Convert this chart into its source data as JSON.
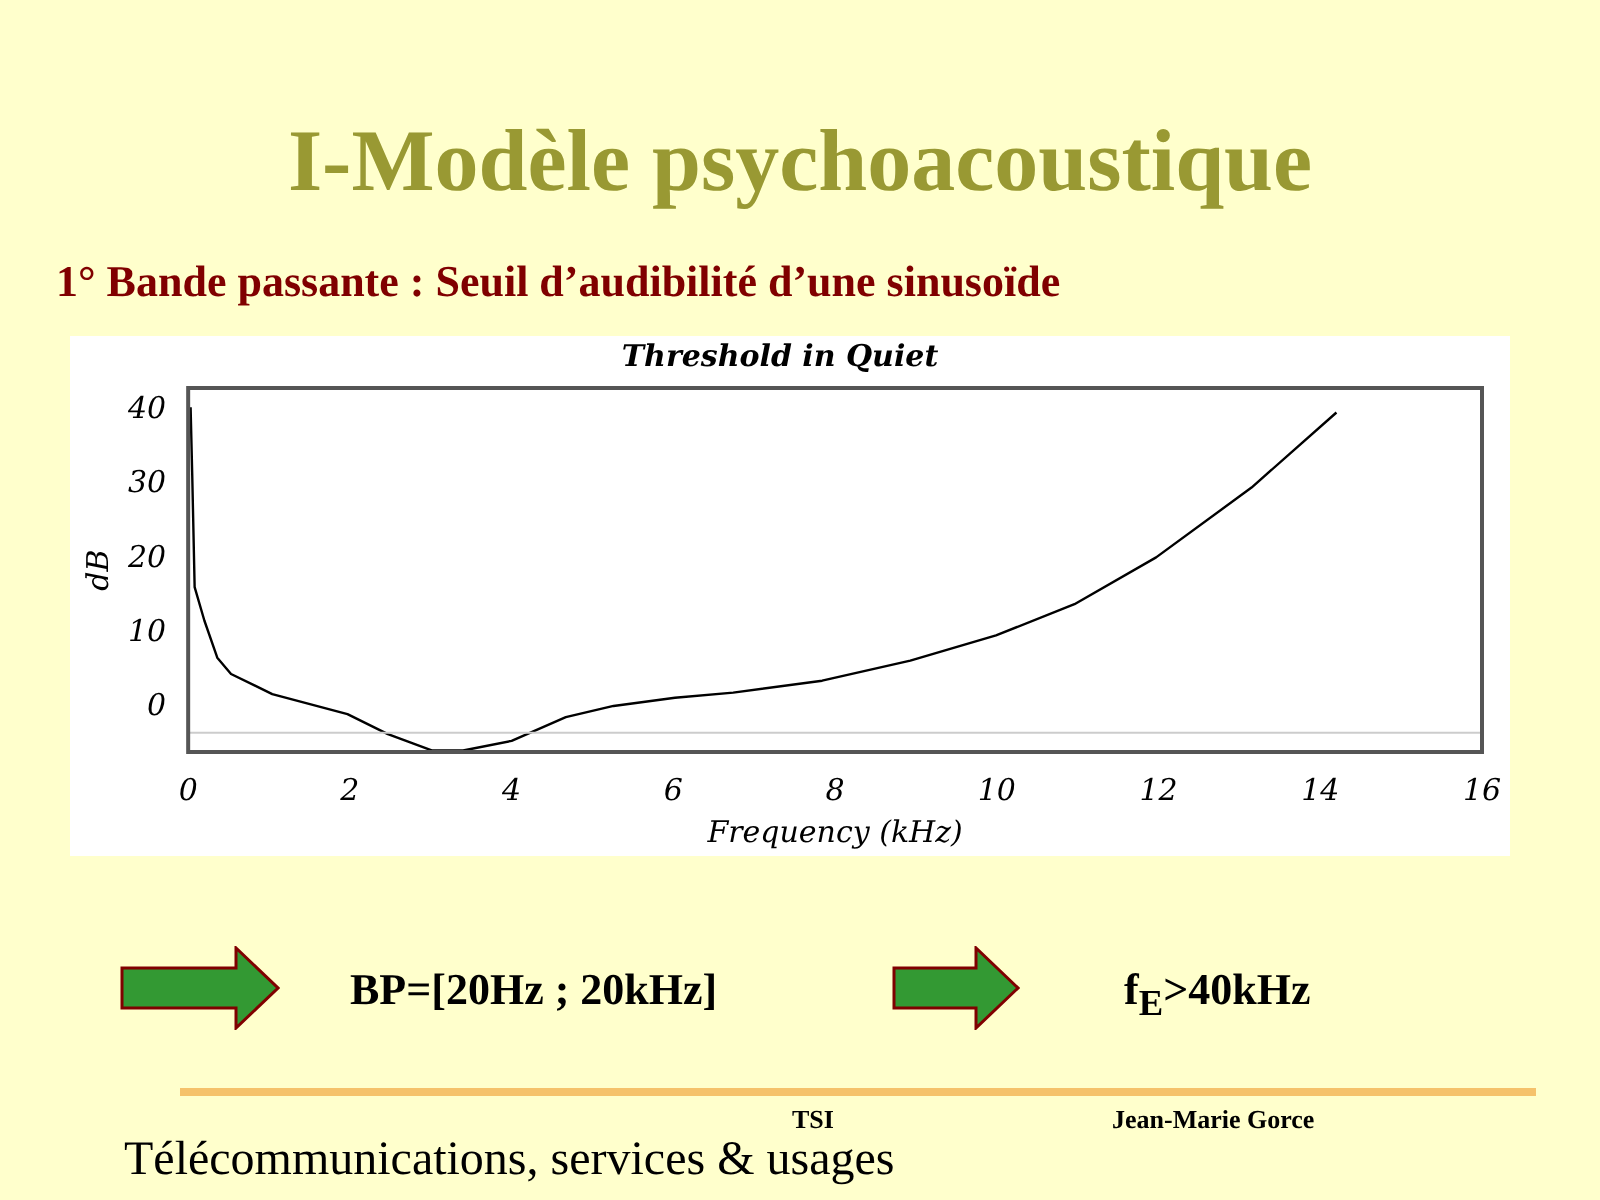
{
  "chart_data": {
    "type": "line",
    "title": "Threshold in Quiet",
    "xlabel": "Frequency (kHz)",
    "ylabel": "dB",
    "annotations": [
      "I-Modèle psychoacoustique",
      "1° Bande passante : Seuil d’audibilité d’une sinusoïde",
      "BP=[20Hz ; 20kHz]",
      "f$_{E}$>40kHz",
      "TSI",
      "Jean-Marie Gorce",
      "Télécommunications, services & usages"
    ],
    "series": [
      {
        "color": "#000000",
        "x": [
          0.03,
          0.05,
          0.08,
          0.2,
          0.36,
          0.53,
          1.04,
          1.97,
          2.47,
          3.02,
          3.4,
          4.0,
          4.67,
          5.26,
          6.02,
          6.74,
          7.84,
          8.93,
          9.99,
          10.96,
          11.97,
          13.15,
          14.2
        ],
        "values": [
          40.4,
          31.4,
          16.2,
          11.7,
          6.7,
          4.5,
          1.8,
          -0.9,
          -3.6,
          -5.8,
          -5.8,
          -4.5,
          -1.3,
          0.2,
          1.3,
          2.0,
          3.6,
          6.3,
          9.7,
          13.9,
          20.2,
          29.6,
          39.7
        ]
      }
    ],
    "xlim": [
      0,
      16
    ],
    "xticks": [
      0,
      2,
      4,
      6,
      8,
      10,
      12,
      14,
      16
    ],
    "ylim": [
      -6,
      43
    ],
    "yticks": [
      0,
      10,
      20,
      30,
      40
    ],
    "ref_lines": [
      {
        "axis": "y",
        "value": -3.4,
        "color": "#cccccc"
      }
    ],
    "grid": false,
    "legend": false,
    "marker": "none",
    "line_style": "solid"
  }
}
